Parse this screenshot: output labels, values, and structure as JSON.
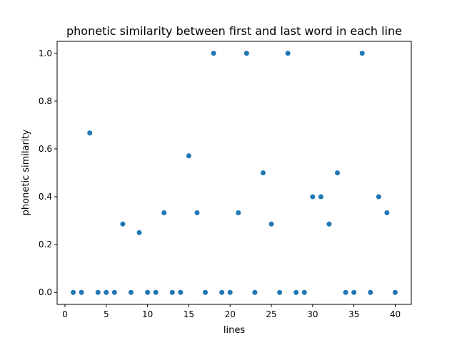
{
  "chart_data": {
    "type": "scatter",
    "title": "phonetic similarity between first and last word in each line",
    "xlabel": "lines",
    "ylabel": "phonetic similarity",
    "xlim": [
      -0.95,
      41.95
    ],
    "ylim": [
      -0.05,
      1.05
    ],
    "xticks": [
      0,
      5,
      10,
      15,
      20,
      25,
      30,
      35,
      40
    ],
    "xtick_labels": [
      "0",
      "5",
      "10",
      "15",
      "20",
      "25",
      "30",
      "35",
      "40"
    ],
    "yticks": [
      0.0,
      0.2,
      0.4,
      0.6,
      0.8,
      1.0
    ],
    "ytick_labels": [
      "0.0",
      "0.2",
      "0.4",
      "0.6",
      "0.8",
      "1.0"
    ],
    "grid": false,
    "marker_color": "#1f77b4",
    "x": [
      1,
      2,
      3,
      4,
      5,
      6,
      7,
      8,
      9,
      10,
      11,
      12,
      13,
      14,
      15,
      16,
      17,
      18,
      19,
      20,
      21,
      22,
      23,
      24,
      25,
      26,
      27,
      28,
      29,
      30,
      31,
      32,
      33,
      34,
      35,
      36,
      37,
      38,
      39,
      40
    ],
    "y": [
      0,
      0,
      0.667,
      0,
      0,
      0,
      0.286,
      0,
      0.25,
      0,
      0,
      0.333,
      0,
      0,
      0.571,
      0.333,
      0,
      1.0,
      0,
      0,
      0.333,
      1.0,
      0,
      0.5,
      0.286,
      0,
      1.0,
      0,
      0,
      0.4,
      0.4,
      0.286,
      0.5,
      0,
      0,
      1.0,
      0,
      0.4,
      0.333,
      0
    ]
  }
}
